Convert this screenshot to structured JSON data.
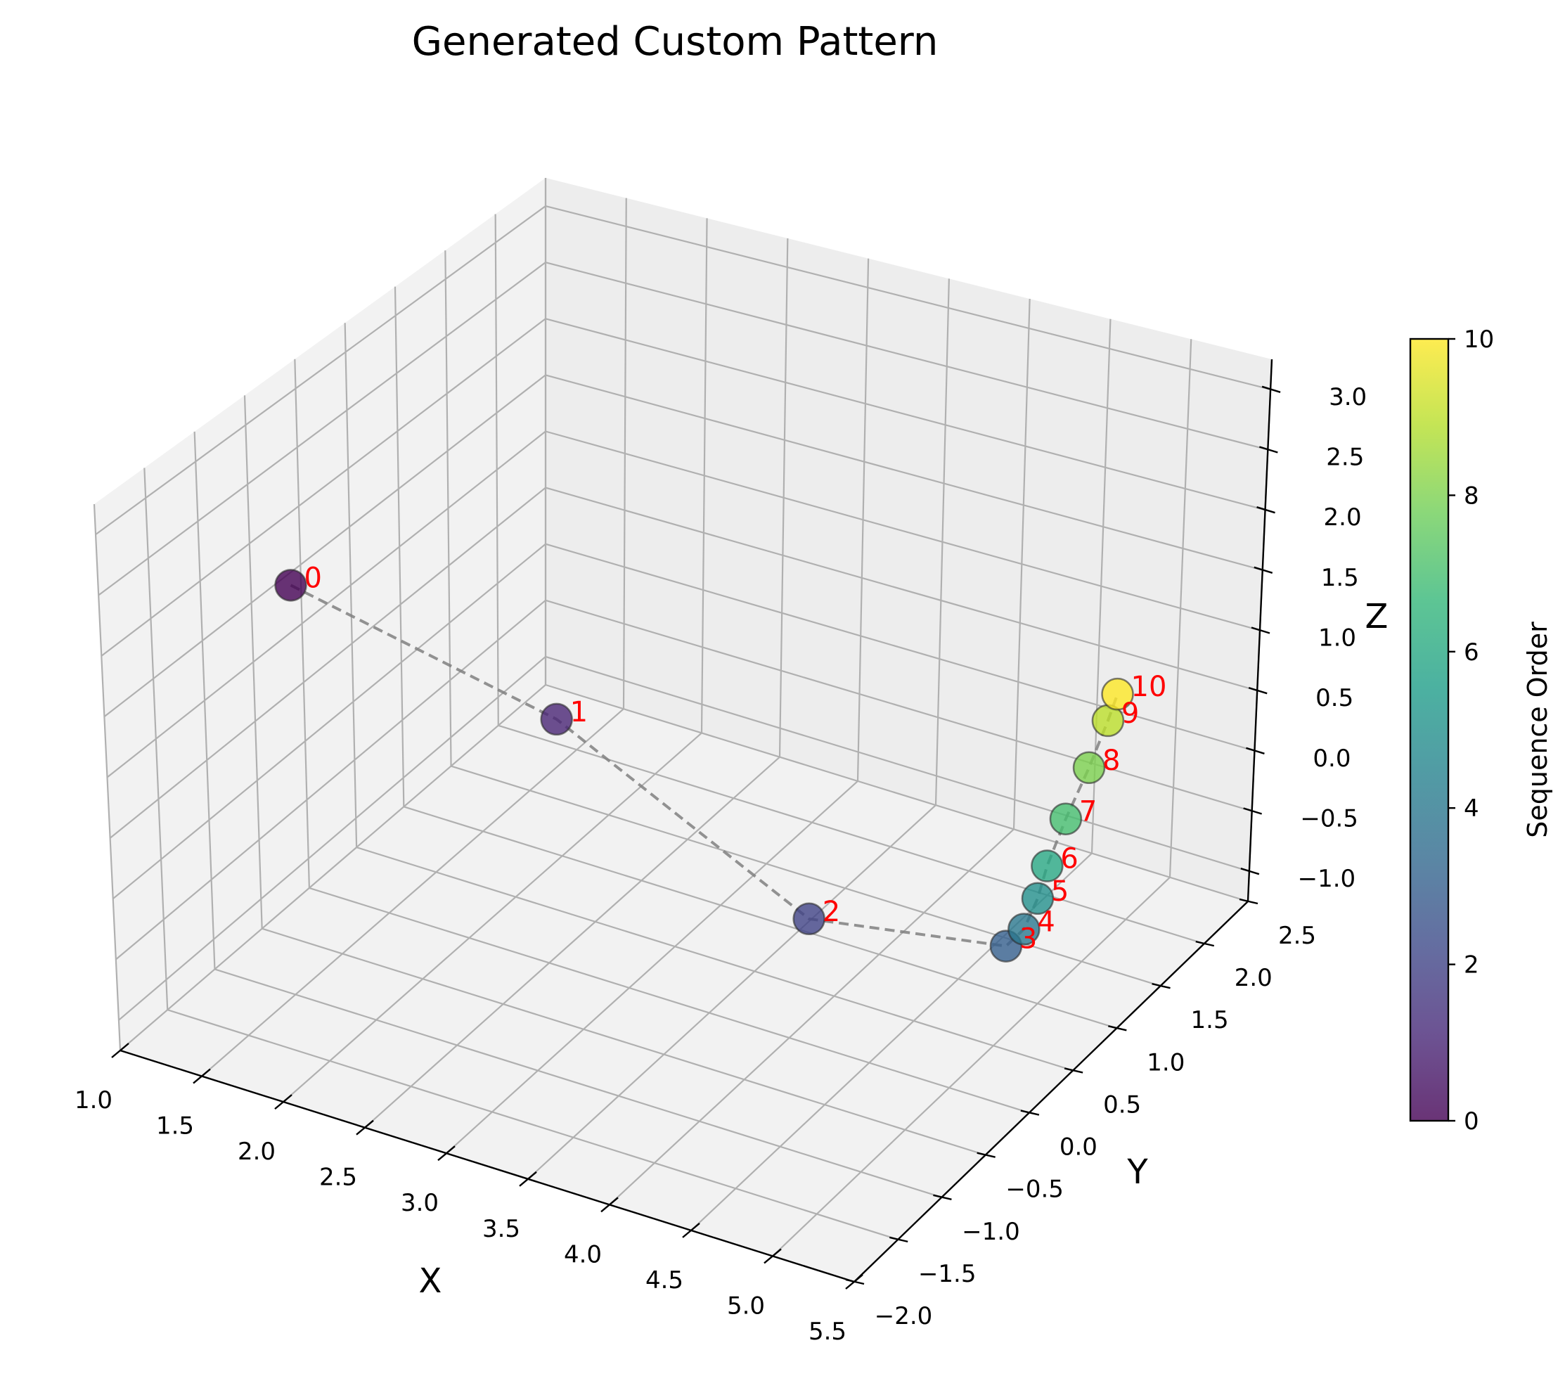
{
  "chart_data": {
    "type": "scatter",
    "title": "Generated Custom Pattern",
    "xlabel": "X",
    "ylabel": "Y",
    "zlabel": "Z",
    "xlim": [
      1.0,
      5.5
    ],
    "ylim": [
      -2.0,
      2.5
    ],
    "zlim": [
      -1.25,
      3.25
    ],
    "x_ticks": [
      "1.0",
      "1.5",
      "2.0",
      "2.5",
      "3.0",
      "3.5",
      "4.0",
      "4.5",
      "5.0",
      "5.5"
    ],
    "y_ticks": [
      "−2.0",
      "−1.5",
      "−1.0",
      "−0.5",
      "0.0",
      "0.5",
      "1.0",
      "1.5",
      "2.0",
      "2.5"
    ],
    "z_ticks": [
      "−1.0",
      "−0.5",
      "0.0",
      "0.5",
      "1.0",
      "1.5",
      "2.0",
      "2.5",
      "3.0"
    ],
    "points": [
      {
        "label": "0",
        "x": 2.1,
        "y": -1.9,
        "z": 3.0,
        "order": 0
      },
      {
        "label": "1",
        "x": 3.5,
        "y": -1.6,
        "z": 2.3,
        "order": 1
      },
      {
        "label": "2",
        "x": 4.9,
        "y": -1.4,
        "z": 1.1,
        "order": 2
      },
      {
        "label": "3",
        "x": 5.5,
        "y": -0.3,
        "z": 0.35,
        "order": 3
      },
      {
        "label": "4",
        "x": 5.5,
        "y": -0.1,
        "z": 0.35,
        "order": 4
      },
      {
        "label": "5",
        "x": 5.5,
        "y": 0.05,
        "z": 0.5,
        "order": 5
      },
      {
        "label": "6",
        "x": 5.5,
        "y": 0.15,
        "z": 0.7,
        "order": 6
      },
      {
        "label": "7",
        "x": 5.5,
        "y": 0.35,
        "z": 0.95,
        "order": 7
      },
      {
        "label": "8",
        "x": 5.5,
        "y": 0.6,
        "z": 1.2,
        "order": 8
      },
      {
        "label": "9",
        "x": 5.5,
        "y": 0.8,
        "z": 1.45,
        "order": 9
      },
      {
        "label": "10",
        "x": 5.5,
        "y": 0.9,
        "z": 1.6,
        "order": 10
      }
    ],
    "line_style": "dashed gray connecting points in sequence",
    "point_label_color": "#ff0000",
    "colorbar": {
      "label": "Sequence Order",
      "colormap": "viridis",
      "range": [
        0,
        10
      ],
      "ticks": [
        "0",
        "2",
        "4",
        "6",
        "8",
        "10"
      ]
    },
    "grid": true
  }
}
